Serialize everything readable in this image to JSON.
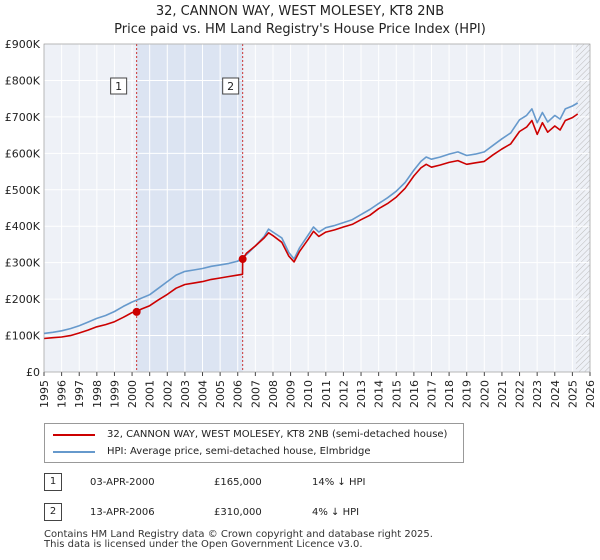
{
  "header": {
    "title_line1": "32, CANNON WAY, WEST MOLESEY, KT8 2NB",
    "title_line2": "Price paid vs. HM Land Registry's House Price Index (HPI)"
  },
  "chart_data": {
    "type": "line",
    "title": "Price paid vs. HM Land Registry's House Price Index (HPI)",
    "xlim": [
      1995,
      2026
    ],
    "ylim": [
      0,
      900000
    ],
    "x_ticks": [
      "1995",
      "1996",
      "1997",
      "1998",
      "1999",
      "2000",
      "2001",
      "2002",
      "2003",
      "2004",
      "2005",
      "2006",
      "2007",
      "2008",
      "2009",
      "2010",
      "2011",
      "2012",
      "2013",
      "2014",
      "2015",
      "2016",
      "2017",
      "2018",
      "2019",
      "2020",
      "2021",
      "2022",
      "2023",
      "2024",
      "2025",
      "2026"
    ],
    "y_ticks": [
      {
        "value": 0,
        "label": "£0"
      },
      {
        "value": 100000,
        "label": "£100K"
      },
      {
        "value": 200000,
        "label": "£200K"
      },
      {
        "value": 300000,
        "label": "£300K"
      },
      {
        "value": 400000,
        "label": "£400K"
      },
      {
        "value": 500000,
        "label": "£500K"
      },
      {
        "value": 600000,
        "label": "£600K"
      },
      {
        "value": 700000,
        "label": "£700K"
      },
      {
        "value": 800000,
        "label": "£800K"
      },
      {
        "value": 900000,
        "label": "£900K"
      }
    ],
    "grid": true,
    "shaded_period": [
      2000.26,
      2006.28
    ],
    "future_hatch_from": 2025.2,
    "series": [
      {
        "name": "32, CANNON WAY, WEST MOLESEY, KT8 2NB (semi-detached house)",
        "color": "#cc0000",
        "x": [
          1995.0,
          1995.5,
          1996.0,
          1996.5,
          1997.0,
          1997.5,
          1998.0,
          1998.5,
          1999.0,
          1999.5,
          2000.0,
          2000.26,
          2000.5,
          2001.0,
          2001.5,
          2002.0,
          2002.5,
          2003.0,
          2003.5,
          2004.0,
          2004.5,
          2005.0,
          2005.5,
          2006.0,
          2006.27,
          2006.28,
          2006.5,
          2007.0,
          2007.5,
          2007.75,
          2008.0,
          2008.5,
          2008.9,
          2009.2,
          2009.5,
          2010.0,
          2010.3,
          2010.6,
          2011.0,
          2011.5,
          2012.0,
          2012.5,
          2013.0,
          2013.5,
          2014.0,
          2014.5,
          2015.0,
          2015.5,
          2016.0,
          2016.4,
          2016.7,
          2017.0,
          2017.5,
          2018.0,
          2018.5,
          2019.0,
          2019.5,
          2020.0,
          2020.5,
          2021.0,
          2021.5,
          2022.0,
          2022.4,
          2022.7,
          2023.0,
          2023.3,
          2023.6,
          2024.0,
          2024.3,
          2024.6,
          2025.0,
          2025.3
        ],
        "y": [
          92000,
          94000,
          96000,
          100000,
          107000,
          115000,
          124000,
          130000,
          138000,
          150000,
          163000,
          165000,
          172000,
          182000,
          198000,
          213000,
          230000,
          240000,
          244000,
          248000,
          254000,
          258000,
          262000,
          266000,
          268000,
          310000,
          326000,
          346000,
          368000,
          382000,
          374000,
          356000,
          318000,
          302000,
          330000,
          364000,
          386000,
          372000,
          384000,
          390000,
          398000,
          405000,
          418000,
          430000,
          448000,
          462000,
          480000,
          504000,
          538000,
          560000,
          570000,
          562000,
          568000,
          575000,
          580000,
          570000,
          574000,
          578000,
          596000,
          612000,
          626000,
          660000,
          672000,
          690000,
          652000,
          684000,
          658000,
          675000,
          664000,
          690000,
          698000,
          708000
        ]
      },
      {
        "name": "HPI: Average price, semi-detached house, Elmbridge",
        "color": "#6699cc",
        "x": [
          1995.0,
          1995.5,
          1996.0,
          1996.5,
          1997.0,
          1997.5,
          1998.0,
          1998.5,
          1999.0,
          1999.5,
          2000.0,
          2000.5,
          2001.0,
          2001.5,
          2002.0,
          2002.5,
          2003.0,
          2003.5,
          2004.0,
          2004.5,
          2005.0,
          2005.5,
          2006.0,
          2006.5,
          2007.0,
          2007.5,
          2007.75,
          2008.0,
          2008.5,
          2008.9,
          2009.2,
          2009.5,
          2010.0,
          2010.3,
          2010.6,
          2011.0,
          2011.5,
          2012.0,
          2012.5,
          2013.0,
          2013.5,
          2014.0,
          2014.5,
          2015.0,
          2015.5,
          2016.0,
          2016.4,
          2016.7,
          2017.0,
          2017.5,
          2018.0,
          2018.5,
          2019.0,
          2019.5,
          2020.0,
          2020.5,
          2021.0,
          2021.5,
          2022.0,
          2022.4,
          2022.7,
          2023.0,
          2023.3,
          2023.6,
          2024.0,
          2024.3,
          2024.6,
          2025.0,
          2025.3
        ],
        "y": [
          106000,
          109000,
          113000,
          119000,
          127000,
          137000,
          147000,
          155000,
          166000,
          180000,
          192000,
          202000,
          212000,
          230000,
          248000,
          266000,
          276000,
          280000,
          284000,
          290000,
          294000,
          298000,
          304000,
          322000,
          346000,
          372000,
          392000,
          384000,
          368000,
          328000,
          310000,
          340000,
          376000,
          398000,
          384000,
          396000,
          402000,
          410000,
          418000,
          432000,
          446000,
          462000,
          478000,
          496000,
          520000,
          554000,
          578000,
          590000,
          584000,
          590000,
          598000,
          604000,
          594000,
          598000,
          604000,
          622000,
          640000,
          656000,
          692000,
          704000,
          722000,
          684000,
          712000,
          686000,
          704000,
          694000,
          722000,
          730000,
          738000
        ]
      }
    ],
    "markers": [
      {
        "label": "1",
        "x": 2000.26,
        "y": 165000
      },
      {
        "label": "2",
        "x": 2006.28,
        "y": 310000
      }
    ]
  },
  "legend": {
    "items": [
      {
        "label": "32, CANNON WAY, WEST MOLESEY, KT8 2NB (semi-detached house)",
        "color": "#cc0000"
      },
      {
        "label": "HPI: Average price, semi-detached house, Elmbridge",
        "color": "#6699cc"
      }
    ]
  },
  "sales": [
    {
      "label": "1",
      "date": "03-APR-2000",
      "price": "£165,000",
      "hpi": "14% ↓ HPI"
    },
    {
      "label": "2",
      "date": "13-APR-2006",
      "price": "£310,000",
      "hpi": "4% ↓ HPI"
    }
  ],
  "footer": {
    "line1": "Contains HM Land Registry data © Crown copyright and database right 2025.",
    "line2": "This data is licensed under the Open Government Licence v3.0."
  }
}
